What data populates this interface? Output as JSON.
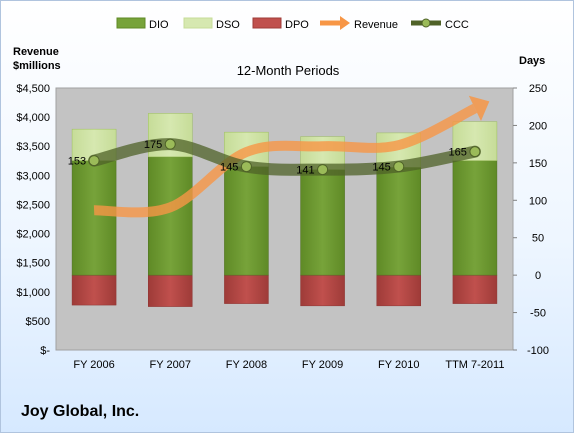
{
  "chart_data": {
    "type": "bar",
    "title": "12-Month Periods",
    "categories": [
      "FY 2006",
      "FY 2007",
      "FY 2008",
      "FY 2009",
      "FY 2010",
      "TTM 7-2011"
    ],
    "left_axis_label": "Revenue\n$millions",
    "right_axis_label": "Days",
    "left_axis": {
      "min": 0,
      "max": 4500,
      "step": 500,
      "ticks": [
        "$-",
        "$500",
        "$1,000",
        "$1,500",
        "$2,000",
        "$2,500",
        "$3,000",
        "$3,500",
        "$4,000",
        "$4,500"
      ]
    },
    "right_axis": {
      "min": -100,
      "max": 250,
      "step": 50,
      "ticks": [
        "-100",
        "-50",
        "0",
        "50",
        "100",
        "150",
        "200",
        "250"
      ]
    },
    "series": [
      {
        "name": "DIO",
        "type": "stacked-bar",
        "axis": "days",
        "color": "#77a33a",
        "values": [
          153,
          158,
          145,
          141,
          144,
          153
        ]
      },
      {
        "name": "DSO",
        "type": "stacked-bar",
        "axis": "days",
        "color": "#d6e8b0",
        "values": [
          42,
          58,
          46,
          44,
          46,
          52
        ]
      },
      {
        "name": "DPO",
        "type": "stacked-bar",
        "axis": "days",
        "color": "#c0504d",
        "values": [
          -40,
          -42,
          -38,
          -41,
          -41,
          -38
        ]
      },
      {
        "name": "Revenue",
        "type": "line",
        "axis": "revenue",
        "color": "#f79646",
        "values": [
          2400,
          2450,
          3400,
          3500,
          3520,
          4150
        ]
      },
      {
        "name": "CCC",
        "type": "line",
        "axis": "days",
        "color": "#4f6228",
        "values": [
          153,
          175,
          145,
          141,
          145,
          165
        ]
      }
    ],
    "data_labels": [
      "153",
      "175",
      "145",
      "141",
      "145",
      "165"
    ],
    "legend": "top",
    "grid": false
  },
  "footer": {
    "company": "Joy Global, Inc."
  }
}
